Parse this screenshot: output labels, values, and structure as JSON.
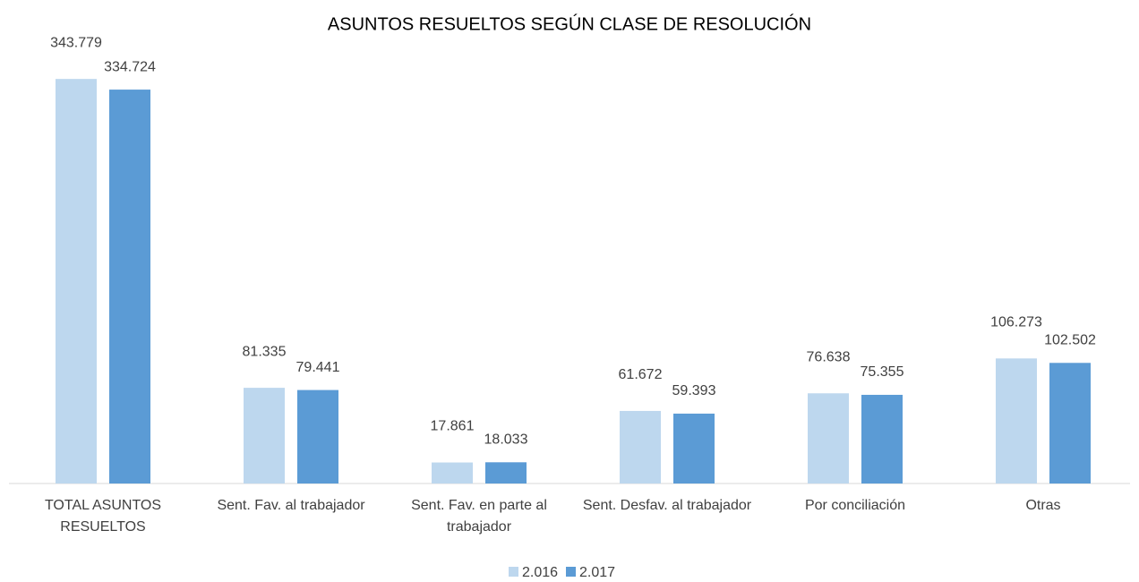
{
  "chart_data": {
    "type": "bar",
    "title": "ASUNTOS RESUELTOS SEGÚN CLASE DE RESOLUCIÓN",
    "categories": [
      "TOTAL ASUNTOS RESUELTOS",
      "Sent. Fav. al trabajador",
      "Sent. Fav. en parte al trabajador",
      "Sent. Desfav. al trabajador",
      "Por conciliación",
      "Otras"
    ],
    "series": [
      {
        "name": "2.016",
        "color": "#bdd7ee",
        "values": [
          343779,
          81335,
          17861,
          61672,
          76638,
          106273
        ],
        "value_labels": [
          "343.779",
          "81.335",
          "17.861",
          "61.672",
          "76.638",
          "106.273"
        ]
      },
      {
        "name": "2.017",
        "color": "#5b9bd5",
        "values": [
          334724,
          79441,
          18033,
          59393,
          75355,
          102502
        ],
        "value_labels": [
          "334.724",
          "79.441",
          "18.033",
          "59.393",
          "75.355",
          "102.502"
        ]
      }
    ],
    "ylim": [
      0,
      350000
    ],
    "legend": "bottom"
  }
}
